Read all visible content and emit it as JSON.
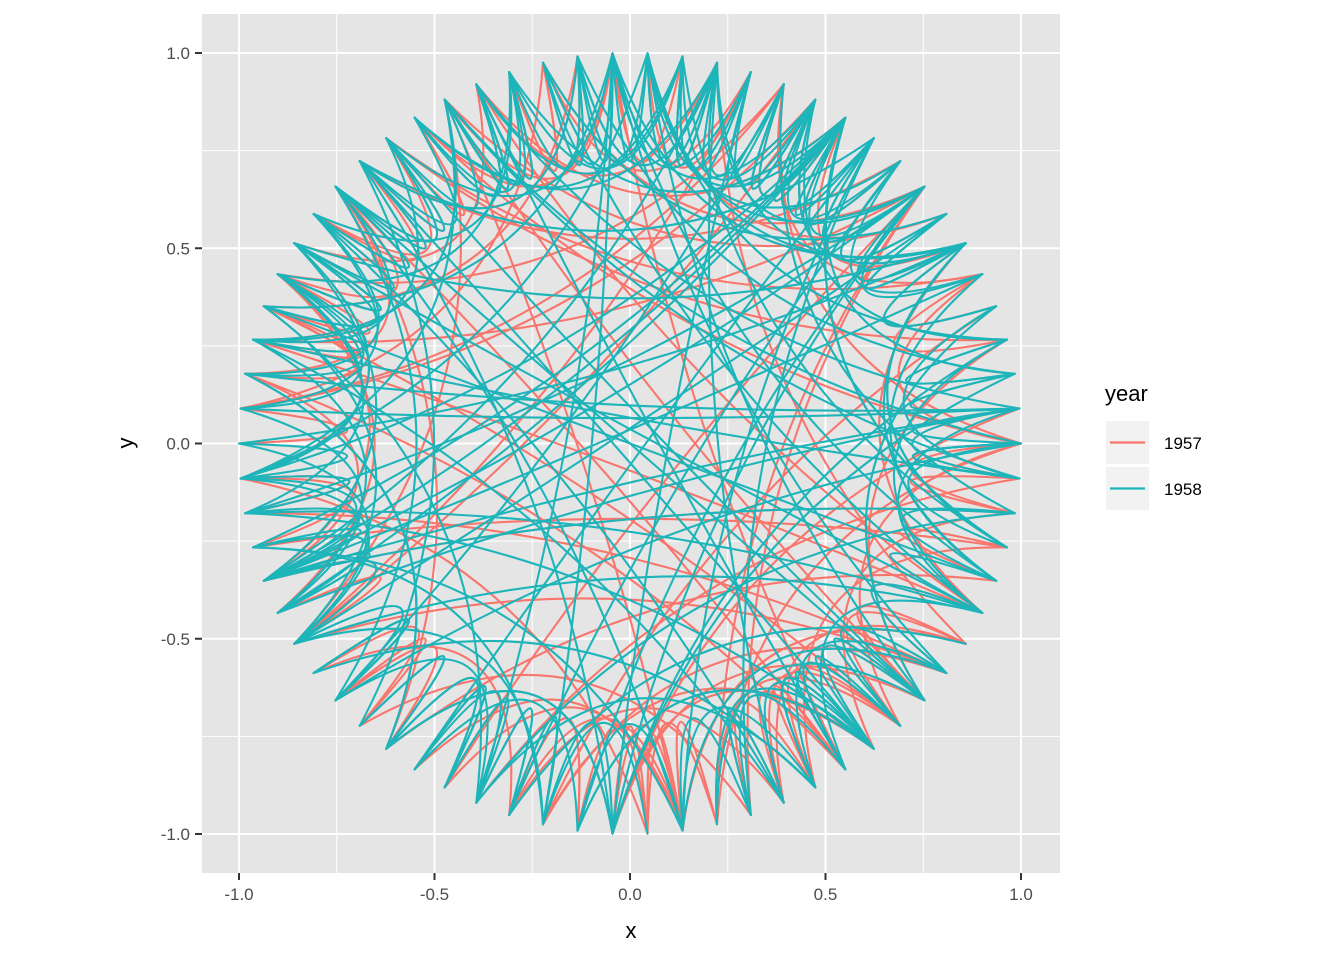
{
  "chart_data": {
    "type": "network-arc",
    "title": "",
    "xlabel": "x",
    "ylabel": "y",
    "xlim": [
      -1.1,
      1.1
    ],
    "ylim": [
      -1.1,
      1.1
    ],
    "x_ticks": [
      -1.0,
      -0.5,
      0.0,
      0.5,
      1.0
    ],
    "x_tick_labels": [
      "-1.0",
      "-0.5",
      "0.0",
      "0.5",
      "1.0"
    ],
    "y_ticks": [
      -1.0,
      -0.5,
      0.0,
      0.5,
      1.0
    ],
    "y_tick_labels": [
      "-1.0",
      "-0.5",
      "0.0",
      "0.5",
      "1.0"
    ],
    "grid": true,
    "background": "#E5E5E5",
    "node_count": 70,
    "node_layout": "unit circle, evenly spaced",
    "curvature": 0.5,
    "legend": {
      "title": "year",
      "position": "right",
      "entries": [
        {
          "label": "1957",
          "color": "#F8766D"
        },
        {
          "label": "1958",
          "color": "#1DB5BA"
        }
      ]
    },
    "series": [
      {
        "name": "1957",
        "color": "#F8766D",
        "edge_count": 150,
        "seed": 1957
      },
      {
        "name": "1958",
        "color": "#1DB5BA",
        "edge_count": 260,
        "seed": 1958
      }
    ]
  }
}
